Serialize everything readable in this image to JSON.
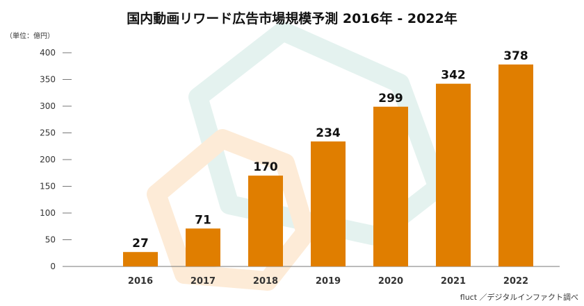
{
  "chart_data": {
    "type": "bar",
    "title": "国内動画リワード広告市場規模予測 2016年 - 2022年",
    "unit_label": "（単位：億円）",
    "categories": [
      "2016",
      "2017",
      "2018",
      "2019",
      "2020",
      "2021",
      "2022"
    ],
    "values": [
      27,
      71,
      170,
      234,
      299,
      342,
      378
    ],
    "ylim": [
      0,
      400
    ],
    "yticks": [
      0,
      50,
      100,
      150,
      200,
      250,
      300,
      350,
      400
    ],
    "grid": false,
    "legend": "none",
    "bar_color": "#e07e00",
    "source": "fluct ／デジタルインファクト調べ"
  }
}
